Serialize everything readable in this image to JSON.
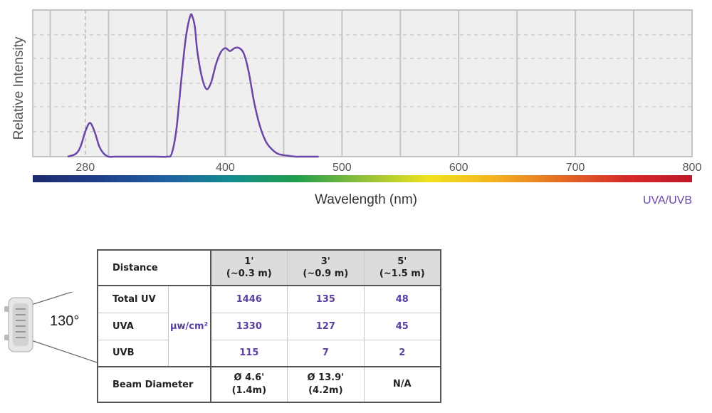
{
  "chart_data": {
    "type": "line",
    "title": "",
    "xlabel": "Wavelength (nm)",
    "ylabel": "Relative Intensity",
    "xlim": [
      235,
      800
    ],
    "ylim": [
      0,
      1
    ],
    "xticks": [
      280,
      400,
      500,
      600,
      700,
      800
    ],
    "grid": true,
    "legend": "UVA/UVB",
    "line_color": "#6a46a8",
    "series": [
      {
        "name": "UVA/UVB",
        "x": [
          265,
          272,
          276,
          280,
          284,
          288,
          292,
          296,
          300,
          305,
          310,
          320,
          330,
          340,
          350,
          354,
          358,
          362,
          366,
          370,
          372,
          374,
          376,
          380,
          384,
          388,
          392,
          396,
          400,
          404,
          408,
          412,
          416,
          420,
          425,
          430,
          435,
          440,
          445,
          450,
          455,
          460,
          465,
          470,
          475,
          480
        ],
        "y": [
          0.0,
          0.02,
          0.07,
          0.17,
          0.23,
          0.17,
          0.07,
          0.02,
          0.0,
          0.0,
          0.0,
          0.0,
          0.0,
          0.0,
          0.0,
          0.02,
          0.18,
          0.5,
          0.8,
          0.96,
          0.95,
          0.88,
          0.72,
          0.54,
          0.46,
          0.51,
          0.63,
          0.71,
          0.74,
          0.72,
          0.74,
          0.74,
          0.7,
          0.58,
          0.36,
          0.2,
          0.1,
          0.05,
          0.02,
          0.01,
          0.005,
          0.0,
          0.0,
          0.0,
          0.0,
          0.0
        ]
      }
    ],
    "reference_line_x": 280
  },
  "colorbar": {
    "stops": [
      "#1d2a6e",
      "#1f3f8a",
      "#1f5fa0",
      "#138c8f",
      "#1f9e4a",
      "#8fc03a",
      "#efe21e",
      "#f4b21f",
      "#e46d24",
      "#d62a2a",
      "#c0182a"
    ]
  },
  "fixture": {
    "beam_angle": "130°"
  },
  "table": {
    "distance_label": "Distance",
    "columns": [
      {
        "line1": "1'",
        "line2": "(~0.3 m)"
      },
      {
        "line1": "3'",
        "line2": "(~0.9 m)"
      },
      {
        "line1": "5'",
        "line2": "(~1.5 m)"
      }
    ],
    "unit": "µw/cm²",
    "rows": [
      {
        "label": "Total UV",
        "values": [
          "1446",
          "135",
          "48"
        ]
      },
      {
        "label": "UVA",
        "values": [
          "1330",
          "127",
          "45"
        ]
      },
      {
        "label": "UVB",
        "values": [
          "115",
          "7",
          "2"
        ]
      }
    ],
    "beam_label": "Beam Diameter",
    "beam_values": [
      {
        "line1": "Ø 4.6'",
        "line2": "(1.4m)"
      },
      {
        "line1": "Ø 13.9'",
        "line2": "(4.2m)"
      },
      {
        "line1": "N/A",
        "line2": ""
      }
    ]
  }
}
